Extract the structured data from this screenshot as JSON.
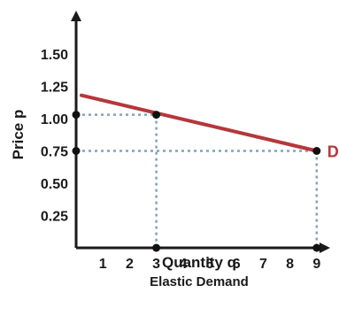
{
  "chart_data": {
    "type": "line",
    "xlabel": "Quantity q",
    "ylabel": "Price p",
    "caption": "Elastic Demand",
    "xlim": [
      0,
      10
    ],
    "ylim": [
      0,
      1.75
    ],
    "x_ticks": [
      "1",
      "2",
      "3",
      "4",
      "5",
      "6",
      "7",
      "8",
      "9"
    ],
    "y_ticks": [
      "0.25",
      "0.50",
      "0.75",
      "1.00",
      "1.25",
      "1.50"
    ],
    "series": [
      {
        "name": "D",
        "color": "#b5373b",
        "points": [
          {
            "x": 0.2,
            "y": 1.18
          },
          {
            "x": 9,
            "y": 0.75
          }
        ]
      }
    ],
    "highlight_points": [
      {
        "x": 3,
        "y": 1.03
      },
      {
        "x": 9,
        "y": 0.75
      }
    ],
    "grid": false,
    "guide_line_color": "#7fa3b8"
  }
}
